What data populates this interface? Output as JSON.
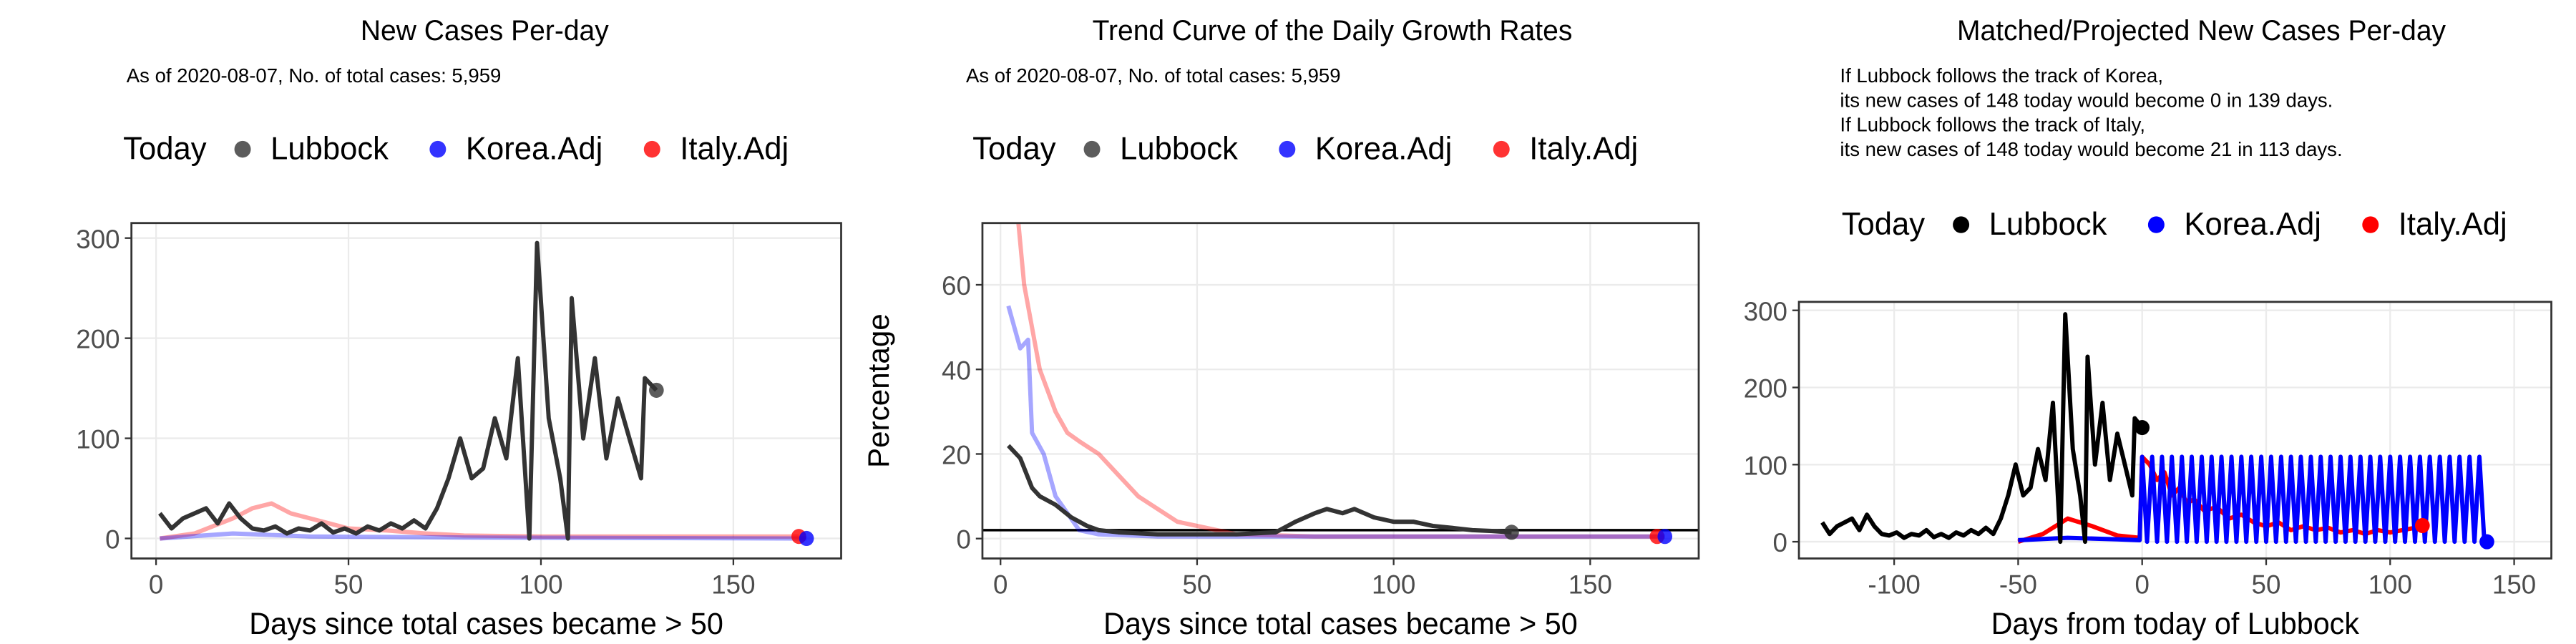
{
  "chart_data": [
    {
      "type": "line",
      "title": "New Cases Per-day",
      "subtitle": "As of 2020-08-07, No. of total cases: 5,959",
      "legend_title": "Today",
      "xlabel": "Days since total cases became > 50",
      "xlim": [
        -6.4,
        178
      ],
      "ylim": [
        -20,
        315
      ],
      "xticks": [
        0,
        50,
        100,
        150
      ],
      "yticks": [
        0,
        100,
        200,
        300
      ],
      "grid": true,
      "line_alpha": 0.35,
      "series": [
        {
          "name": "Lubbock",
          "color": "#333333",
          "x": [
            1,
            4,
            7,
            10,
            13,
            16,
            19,
            22,
            25,
            28,
            31,
            34,
            37,
            40,
            43,
            46,
            49,
            52,
            55,
            58,
            61,
            64,
            67,
            70,
            73,
            76,
            79,
            82,
            85,
            88,
            91,
            94,
            97,
            99,
            102,
            105,
            107,
            108,
            111,
            114,
            117,
            120,
            123,
            126,
            127,
            130
          ],
          "values": [
            25,
            10,
            20,
            25,
            30,
            15,
            35,
            20,
            10,
            8,
            12,
            5,
            10,
            8,
            15,
            6,
            10,
            5,
            12,
            8,
            15,
            10,
            18,
            10,
            30,
            60,
            100,
            60,
            70,
            120,
            80,
            180,
            0,
            295,
            120,
            60,
            0,
            240,
            100,
            180,
            80,
            140,
            100,
            60,
            160,
            148
          ]
        },
        {
          "name": "Korea.Adj",
          "color": "#0000ff",
          "x": [
            1,
            20,
            40,
            80,
            169
          ],
          "values": [
            0,
            5,
            2,
            1,
            0
          ]
        },
        {
          "name": "Italy.Adj",
          "color": "#ff0000",
          "x": [
            1,
            10,
            20,
            25,
            30,
            35,
            40,
            45,
            50,
            60,
            70,
            80,
            100,
            130,
            167
          ],
          "values": [
            0,
            5,
            20,
            30,
            35,
            25,
            20,
            15,
            10,
            8,
            5,
            3,
            2,
            2,
            2
          ]
        }
      ]
    },
    {
      "type": "line",
      "title": "Trend Curve of the Daily Growth Rates",
      "subtitle": "As of 2020-08-07, No. of total cases: 5,959",
      "legend_title": "Today",
      "xlabel": "Days since total cases became > 50",
      "ylabel": "Percentage",
      "xlim": [
        -4.6,
        177.6
      ],
      "ylim": [
        -4.7,
        74.6
      ],
      "xticks": [
        0,
        50,
        100,
        150
      ],
      "yticks": [
        0,
        20,
        40,
        60
      ],
      "grid": true,
      "line_alpha": 0.35,
      "reference_line": 2,
      "series": [
        {
          "name": "Lubbock",
          "color": "#333333",
          "x": [
            2,
            5,
            8,
            10,
            14,
            18,
            22,
            25,
            30,
            40,
            50,
            60,
            70,
            75,
            80,
            83,
            87,
            90,
            95,
            100,
            105,
            110,
            115,
            120,
            125,
            130
          ],
          "values": [
            22,
            19,
            12,
            10,
            8,
            5,
            3,
            2,
            1.5,
            1,
            1,
            1,
            1.5,
            4,
            6,
            7,
            6,
            7,
            5,
            4,
            4,
            3,
            2.5,
            2,
            1.8,
            1.5
          ]
        },
        {
          "name": "Korea.Adj",
          "color": "#0000ff",
          "x": [
            2,
            5,
            7,
            8,
            11,
            14,
            17,
            20,
            25,
            40,
            80,
            120,
            169
          ],
          "values": [
            55,
            45,
            47,
            25,
            20,
            10,
            6,
            2,
            1,
            0.5,
            0.5,
            0.5,
            0.5
          ]
        },
        {
          "name": "Italy.Adj",
          "color": "#ff0000",
          "x": [
            4,
            6,
            10,
            14,
            17,
            20,
            25,
            30,
            35,
            40,
            45,
            50,
            60,
            80,
            120,
            167
          ],
          "values": [
            80,
            60,
            40,
            30,
            25,
            23,
            20,
            15,
            10,
            7,
            4,
            3,
            1,
            0.5,
            0.5,
            0.5
          ]
        }
      ]
    },
    {
      "type": "line",
      "title": "Matched/Projected New Cases Per-day",
      "annotations": [
        "If Lubbock follows the track of Korea,",
        "its new cases of 148 today would become 0 in 139 days.",
        "If Lubbock follows the track of Italy,",
        "its new cases of 148 today would become 21 in 113 days."
      ],
      "legend_title": "Today",
      "xlabel": "Days from today of Lubbock",
      "xlim": [
        -138.4,
        165
      ],
      "ylim": [
        -21.7,
        311
      ],
      "xticks": [
        -100,
        -50,
        0,
        50,
        100,
        150
      ],
      "yticks": [
        0,
        100,
        200,
        300
      ],
      "grid": true,
      "line_alpha": 1,
      "series": [
        {
          "name": "Lubbock",
          "color": "#000000",
          "x": [
            -129,
            -126,
            -123,
            -120,
            -117,
            -114,
            -111,
            -108,
            -105,
            -102,
            -99,
            -96,
            -93,
            -90,
            -87,
            -84,
            -81,
            -78,
            -75,
            -72,
            -69,
            -66,
            -63,
            -60,
            -57,
            -54,
            -51,
            -48,
            -45,
            -42,
            -39,
            -36,
            -33,
            -31,
            -28,
            -25,
            -23,
            -22,
            -19,
            -16,
            -13,
            -10,
            -7,
            -4,
            -3,
            0
          ],
          "values": [
            25,
            10,
            20,
            25,
            30,
            15,
            35,
            20,
            10,
            8,
            12,
            5,
            10,
            8,
            15,
            6,
            10,
            5,
            12,
            8,
            15,
            10,
            18,
            10,
            30,
            60,
            100,
            60,
            70,
            120,
            80,
            180,
            0,
            295,
            120,
            60,
            0,
            240,
            100,
            180,
            80,
            140,
            100,
            60,
            160,
            148
          ]
        },
        {
          "name": "Korea.Adj",
          "color": "#0000ff",
          "x": [
            -50,
            -30,
            -10,
            -1,
            0,
            2,
            4,
            6,
            8,
            10,
            12,
            14,
            16,
            18,
            20,
            22,
            24,
            26,
            28,
            30,
            32,
            34,
            36,
            38,
            40,
            42,
            44,
            46,
            48,
            50,
            52,
            54,
            56,
            58,
            60,
            62,
            64,
            66,
            68,
            70,
            72,
            74,
            76,
            78,
            80,
            82,
            84,
            86,
            88,
            90,
            92,
            94,
            96,
            98,
            100,
            102,
            104,
            106,
            108,
            110,
            112,
            114,
            116,
            118,
            120,
            122,
            124,
            126,
            128,
            130,
            132,
            134,
            136,
            138,
            139
          ],
          "values": [
            2,
            5,
            3,
            2,
            110,
            0,
            110,
            0,
            110,
            0,
            110,
            0,
            110,
            0,
            110,
            0,
            110,
            0,
            110,
            0,
            110,
            0,
            110,
            0,
            110,
            0,
            110,
            0,
            110,
            0,
            110,
            0,
            110,
            0,
            110,
            0,
            110,
            0,
            110,
            0,
            110,
            0,
            110,
            0,
            110,
            0,
            110,
            0,
            110,
            0,
            110,
            0,
            110,
            0,
            110,
            0,
            110,
            0,
            110,
            0,
            110,
            0,
            110,
            0,
            110,
            0,
            110,
            0,
            110,
            0,
            110,
            0,
            110,
            0,
            0
          ]
        },
        {
          "name": "Italy.Adj",
          "color": "#ff0000",
          "x": [
            -50,
            -40,
            -30,
            -20,
            -10,
            -1,
            0,
            3,
            6,
            9,
            12,
            15,
            18,
            21,
            25,
            30,
            35,
            40,
            45,
            50,
            55,
            60,
            65,
            70,
            75,
            80,
            85,
            90,
            95,
            100,
            105,
            110,
            113
          ],
          "values": [
            0,
            10,
            30,
            20,
            8,
            5,
            110,
            100,
            80,
            90,
            60,
            70,
            50,
            55,
            40,
            45,
            30,
            35,
            25,
            20,
            25,
            15,
            20,
            15,
            18,
            12,
            15,
            10,
            15,
            12,
            15,
            18,
            21
          ]
        }
      ]
    }
  ]
}
